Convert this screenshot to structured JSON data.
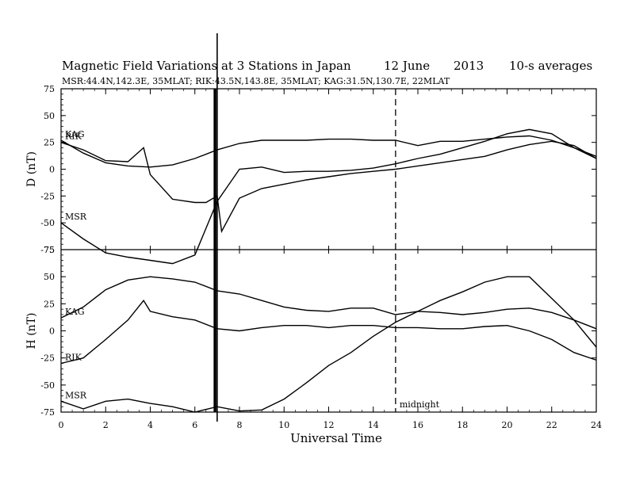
{
  "chart_data": {
    "type": "line",
    "title": "Magnetic Field Variations at 3 Stations in Japan",
    "date_text": "12 June",
    "year_text": "2013",
    "averaging": "10-s averages",
    "stations_text": "MSR:44.4N,142.3E, 35MLAT;  RIK:43.5N,143.8E, 35MLAT;  KAG:31.5N,130.7E, 22MLAT",
    "xlabel": "Universal Time",
    "xlim": [
      0,
      24
    ],
    "xticks": [
      0,
      2,
      4,
      6,
      8,
      10,
      12,
      14,
      16,
      18,
      20,
      22,
      24
    ],
    "midnight_x": 15,
    "midnight_label": "midnight",
    "event_x": 7,
    "panels": [
      {
        "ylabel": "D (nT)",
        "ylim": [
          -75,
          75
        ],
        "yticks": [
          75,
          50,
          25,
          0,
          -25,
          -50,
          -75
        ],
        "series": [
          {
            "name": "KAG",
            "x": [
              0,
              1,
              2,
              3,
              4,
              5,
              6,
              7,
              8,
              9,
              10,
              11,
              12,
              13,
              14,
              15,
              16,
              17,
              18,
              19,
              20,
              21,
              22,
              23,
              24
            ],
            "values": [
              27,
              15,
              6,
              3,
              2,
              4,
              10,
              18,
              24,
              27,
              27,
              27,
              28,
              28,
              27,
              27,
              22,
              26,
              26,
              28,
              30,
              31,
              27,
              20,
              12
            ]
          },
          {
            "name": "RIK",
            "x": [
              0,
              1,
              2,
              3,
              3.7,
              4,
              5,
              6,
              6.5,
              7,
              7.2,
              8,
              9,
              10,
              11,
              12,
              13,
              14,
              15,
              16,
              17,
              18,
              19,
              20,
              21,
              22,
              23,
              24
            ],
            "values": [
              25,
              18,
              8,
              7,
              20,
              -5,
              -28,
              -31,
              -31,
              -25,
              -58,
              -27,
              -18,
              -14,
              -10,
              -7,
              -4,
              -2,
              0,
              3,
              6,
              9,
              12,
              18,
              23,
              26,
              22,
              10
            ]
          },
          {
            "name": "MSR",
            "x": [
              0,
              1,
              2,
              3,
              4,
              5,
              6,
              7,
              8,
              9,
              10,
              11,
              12,
              13,
              14,
              15,
              16,
              17,
              18,
              19,
              20,
              21,
              22,
              23,
              24
            ],
            "values": [
              -50,
              -65,
              -78,
              -82,
              -85,
              -88,
              -80,
              -30,
              0,
              2,
              -3,
              -2,
              -2,
              -1,
              1,
              5,
              10,
              14,
              20,
              26,
              33,
              37,
              33,
              20,
              10
            ]
          }
        ]
      },
      {
        "ylabel": "H (nT)",
        "ylim": [
          -75,
          75
        ],
        "yticks": [
          75,
          50,
          25,
          0,
          -25,
          -50,
          -75
        ],
        "series": [
          {
            "name": "KAG",
            "x": [
              0,
              1,
              2,
              3,
              4,
              5,
              6,
              7,
              8,
              9,
              10,
              11,
              12,
              13,
              14,
              15,
              16,
              17,
              18,
              19,
              20,
              21,
              22,
              23,
              24
            ],
            "values": [
              12,
              22,
              38,
              47,
              50,
              48,
              45,
              37,
              34,
              28,
              22,
              19,
              18,
              21,
              21,
              15,
              18,
              17,
              15,
              17,
              20,
              21,
              17,
              10,
              2
            ]
          },
          {
            "name": "RIK",
            "x": [
              0,
              1,
              2,
              3,
              3.7,
              4,
              5,
              6,
              7,
              8,
              9,
              10,
              11,
              12,
              13,
              14,
              15,
              16,
              17,
              18,
              19,
              20,
              21,
              22,
              23,
              24
            ],
            "values": [
              -30,
              -25,
              -8,
              10,
              28,
              18,
              13,
              10,
              2,
              0,
              3,
              5,
              5,
              3,
              5,
              5,
              3,
              3,
              2,
              2,
              4,
              5,
              0,
              -8,
              -20,
              -27
            ]
          },
          {
            "name": "MSR",
            "x": [
              0,
              1,
              2,
              3,
              4,
              5,
              6,
              7,
              8,
              9,
              10,
              11,
              12,
              13,
              14,
              15,
              16,
              17,
              18,
              19,
              20,
              21,
              22,
              23,
              24
            ],
            "values": [
              -65,
              -72,
              -65,
              -63,
              -67,
              -70,
              -75,
              -70,
              -74,
              -73,
              -63,
              -48,
              -32,
              -20,
              -5,
              8,
              18,
              28,
              36,
              45,
              50,
              50,
              30,
              10,
              -15
            ]
          }
        ]
      }
    ]
  }
}
